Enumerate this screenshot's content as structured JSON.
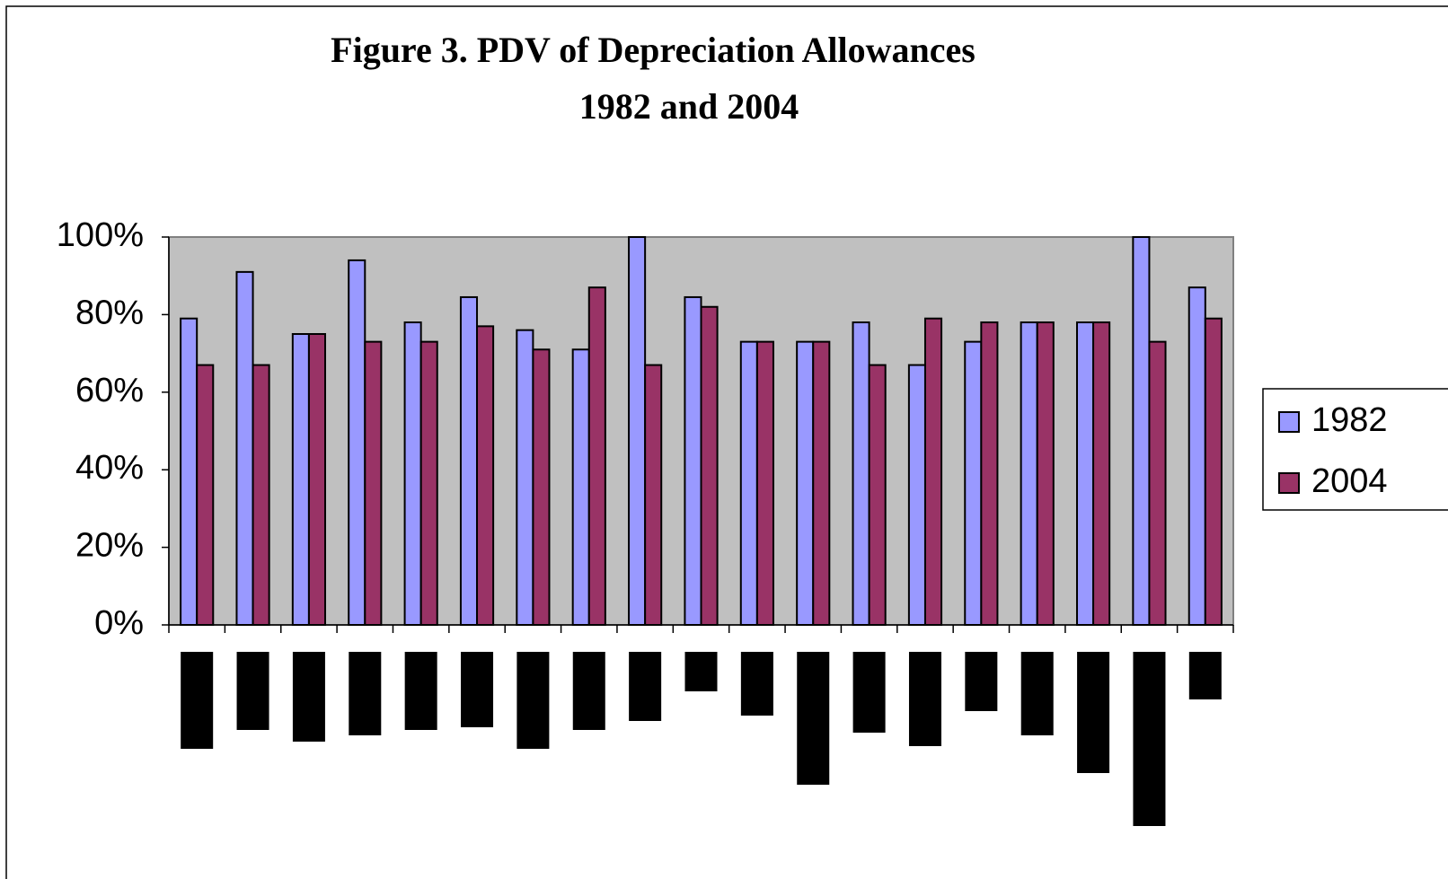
{
  "chart_data": {
    "type": "bar",
    "title": "Figure 3. PDV of Depreciation Allowances",
    "subtitle": "1982 and 2004",
    "categories": [
      null,
      null,
      null,
      null,
      null,
      null,
      null,
      null,
      null,
      null,
      null,
      null,
      null,
      null,
      null,
      null,
      null,
      null,
      null
    ],
    "series": [
      {
        "name": "1982",
        "color": "#9999ff",
        "values": [
          79,
          91,
          75,
          94,
          78,
          84.5,
          76,
          71,
          100,
          84.5,
          73,
          73,
          78,
          67,
          73,
          78,
          78,
          100,
          87
        ]
      },
      {
        "name": "2004",
        "color": "#993366",
        "values": [
          67,
          67,
          75,
          73,
          73,
          77,
          71,
          87,
          67,
          82,
          73,
          73,
          67,
          79,
          78,
          78,
          78,
          73,
          79
        ]
      }
    ],
    "ylim": [
      0,
      100
    ],
    "yticks": [
      {
        "value": 0,
        "label": "0%"
      },
      {
        "value": 20,
        "label": "20%"
      },
      {
        "value": 40,
        "label": "40%"
      },
      {
        "value": 60,
        "label": "60%"
      },
      {
        "value": 80,
        "label": "80%"
      },
      {
        "value": 100,
        "label": "100%"
      }
    ],
    "legend": "right",
    "plot_background": "#c0c0c0"
  }
}
